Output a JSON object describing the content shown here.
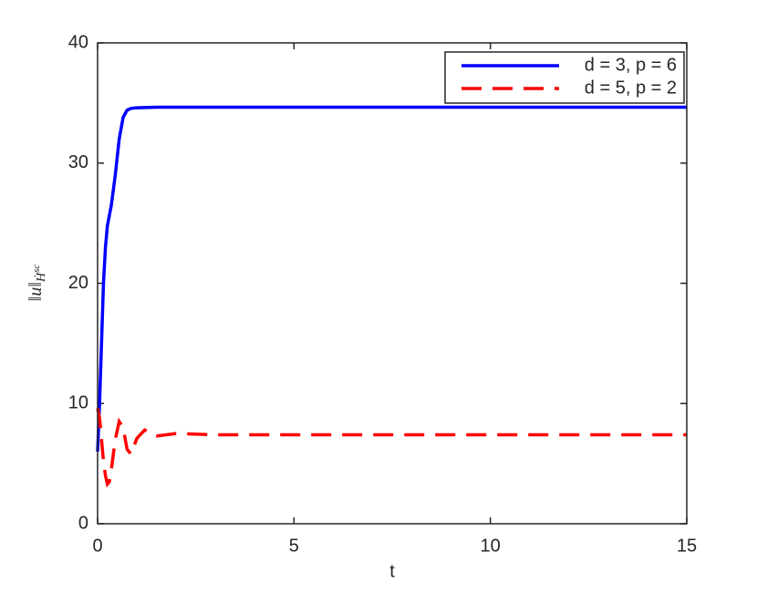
{
  "chart_data": {
    "type": "line",
    "xlabel": "t",
    "ylabel": {
      "norm": "‖u‖",
      "subscript": "Ḣ",
      "superscript": "sc"
    },
    "xlim": [
      0,
      15
    ],
    "xticks": [
      0,
      5,
      10,
      15
    ],
    "ylim": [
      0,
      40
    ],
    "yticks": [
      0,
      10,
      20,
      30,
      40
    ],
    "legend": "top-right",
    "series": [
      {
        "name": "d = 3, p = 6",
        "color": "#0000ff",
        "dash": "solid",
        "x": [
          0,
          0.05,
          0.1,
          0.15,
          0.2,
          0.25,
          0.35,
          0.45,
          0.55,
          0.65,
          0.75,
          0.85,
          1.0,
          1.5,
          3,
          15
        ],
        "values": [
          6,
          10,
          15,
          20,
          23,
          24.8,
          26.5,
          29,
          32,
          33.8,
          34.4,
          34.55,
          34.6,
          34.65,
          34.65,
          34.65
        ]
      },
      {
        "name": "d = 5, p = 2",
        "color": "#ff0000",
        "dash": "dashed",
        "x": [
          0,
          0.05,
          0.1,
          0.15,
          0.2,
          0.25,
          0.3,
          0.35,
          0.45,
          0.55,
          0.65,
          0.75,
          0.85,
          1.0,
          1.2,
          1.5,
          2,
          3,
          15
        ],
        "values": [
          9.6,
          8.8,
          7,
          5.2,
          4,
          3.3,
          3.5,
          4.5,
          7,
          8.5,
          8,
          6.2,
          5.8,
          7.1,
          7.8,
          7.3,
          7.5,
          7.4,
          7.4
        ]
      }
    ]
  }
}
